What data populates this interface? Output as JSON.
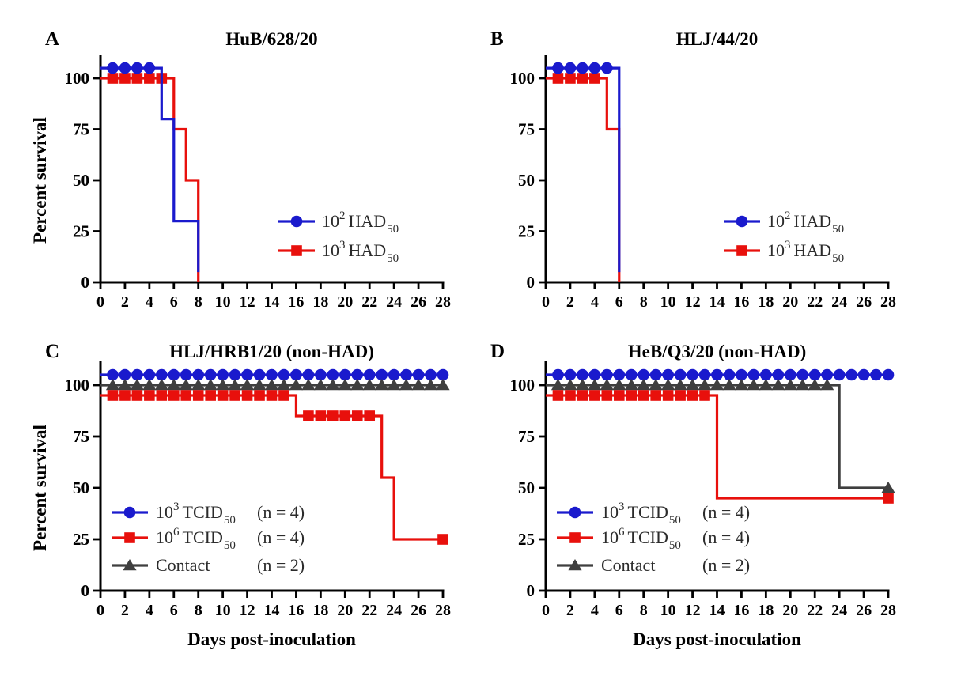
{
  "figure": {
    "ylabel": "Percent survival",
    "xlabel": "Days post-inoculation"
  },
  "colors": {
    "blue": "#1a1acd",
    "red": "#e8100c",
    "gray": "#3f3f3f",
    "axis": "#000000",
    "legend_text": "#2b2b2b"
  },
  "chart_data": [
    {
      "type": "line",
      "panel": "A",
      "title": "HuB/628/20",
      "xlabel": "",
      "ylabel": "Percent survival",
      "xlim": [
        0,
        28
      ],
      "ylim": [
        0,
        110
      ],
      "xticks": [
        0,
        2,
        4,
        6,
        8,
        10,
        12,
        14,
        16,
        18,
        20,
        22,
        24,
        26,
        28
      ],
      "yticks": [
        0,
        25,
        50,
        75,
        100
      ],
      "grid": false,
      "legend_position": "right-center",
      "series": [
        {
          "name": "10^2 HAD50",
          "label": {
            "base": "10",
            "sup": "2",
            "text": "HAD",
            "sub": "50"
          },
          "count": "",
          "color_key": "blue",
          "marker": "circle",
          "z": 2,
          "steps": [
            [
              0,
              105
            ],
            [
              5,
              105
            ],
            [
              5,
              80
            ],
            [
              6,
              80
            ],
            [
              6,
              30
            ],
            [
              8,
              30
            ],
            [
              8,
              5
            ]
          ],
          "marker_runs": [
            {
              "from": 1,
              "to": 4,
              "value": 105
            }
          ]
        },
        {
          "name": "10^3 HAD50",
          "label": {
            "base": "10",
            "sup": "3",
            "text": "HAD",
            "sub": "50"
          },
          "count": "",
          "color_key": "red",
          "marker": "square",
          "z": 1,
          "steps": [
            [
              0,
              100
            ],
            [
              6,
              100
            ],
            [
              6,
              75
            ],
            [
              7,
              75
            ],
            [
              7,
              50
            ],
            [
              8,
              50
            ],
            [
              8,
              0
            ]
          ],
          "marker_runs": [
            {
              "from": 1,
              "to": 5,
              "value": 100
            }
          ]
        }
      ]
    },
    {
      "type": "line",
      "panel": "B",
      "title": "HLJ/44/20",
      "xlabel": "",
      "ylabel": "",
      "xlim": [
        0,
        28
      ],
      "ylim": [
        0,
        110
      ],
      "xticks": [
        0,
        2,
        4,
        6,
        8,
        10,
        12,
        14,
        16,
        18,
        20,
        22,
        24,
        26,
        28
      ],
      "yticks": [
        0,
        25,
        50,
        75,
        100
      ],
      "grid": false,
      "legend_position": "right-center",
      "series": [
        {
          "name": "10^2 HAD50",
          "label": {
            "base": "10",
            "sup": "2",
            "text": "HAD",
            "sub": "50"
          },
          "count": "",
          "color_key": "blue",
          "marker": "circle",
          "z": 2,
          "steps": [
            [
              0,
              105
            ],
            [
              6,
              105
            ],
            [
              6,
              5
            ]
          ],
          "marker_runs": [
            {
              "from": 1,
              "to": 5,
              "value": 105
            }
          ]
        },
        {
          "name": "10^3 HAD50",
          "label": {
            "base": "10",
            "sup": "3",
            "text": "HAD",
            "sub": "50"
          },
          "count": "",
          "color_key": "red",
          "marker": "square",
          "z": 1,
          "steps": [
            [
              0,
              100
            ],
            [
              5,
              100
            ],
            [
              5,
              75
            ],
            [
              6,
              75
            ],
            [
              6,
              0
            ]
          ],
          "marker_runs": [
            {
              "from": 1,
              "to": 4,
              "value": 100
            }
          ]
        }
      ]
    },
    {
      "type": "line",
      "panel": "C",
      "title": "HLJ/HRB1/20 (non-HAD)",
      "xlabel": "Days post-inoculation",
      "ylabel": "Percent survival",
      "xlim": [
        0,
        28
      ],
      "ylim": [
        0,
        110
      ],
      "xticks": [
        0,
        2,
        4,
        6,
        8,
        10,
        12,
        14,
        16,
        18,
        20,
        22,
        24,
        26,
        28
      ],
      "yticks": [
        0,
        25,
        50,
        75,
        100
      ],
      "grid": false,
      "legend_position": "lower-left",
      "series": [
        {
          "name": "10^3 TCID50",
          "label": {
            "base": "10",
            "sup": "3",
            "text": "TCID",
            "sub": "50"
          },
          "count": "(n = 4)",
          "color_key": "blue",
          "marker": "circle",
          "z": 1,
          "steps": [
            [
              0,
              105
            ],
            [
              28,
              105
            ]
          ],
          "marker_runs": [
            {
              "from": 1,
              "to": 28,
              "value": 105
            }
          ]
        },
        {
          "name": "10^6 TCID50",
          "label": {
            "base": "10",
            "sup": "6",
            "text": "TCID",
            "sub": "50"
          },
          "count": "(n = 4)",
          "color_key": "red",
          "marker": "square",
          "z": 3,
          "steps": [
            [
              0,
              95
            ],
            [
              16,
              95
            ],
            [
              16,
              85
            ],
            [
              23,
              85
            ],
            [
              23,
              55
            ],
            [
              24,
              55
            ],
            [
              24,
              25
            ],
            [
              28,
              25
            ]
          ],
          "marker_runs": [
            {
              "from": 1,
              "to": 15,
              "value": 95
            },
            {
              "from": 17,
              "to": 22,
              "value": 85
            },
            {
              "from": 28,
              "to": 28,
              "value": 25
            }
          ]
        },
        {
          "name": "Contact",
          "label": {
            "base": "Contact"
          },
          "count": "(n = 2)",
          "color_key": "gray",
          "marker": "triangle",
          "z": 2,
          "steps": [
            [
              0,
              100
            ],
            [
              28,
              100
            ]
          ],
          "marker_runs": [
            {
              "from": 1,
              "to": 28,
              "value": 100
            }
          ]
        }
      ]
    },
    {
      "type": "line",
      "panel": "D",
      "title": "HeB/Q3/20 (non-HAD)",
      "xlabel": "Days post-inoculation",
      "ylabel": "",
      "xlim": [
        0,
        28
      ],
      "ylim": [
        0,
        110
      ],
      "xticks": [
        0,
        2,
        4,
        6,
        8,
        10,
        12,
        14,
        16,
        18,
        20,
        22,
        24,
        26,
        28
      ],
      "yticks": [
        0,
        25,
        50,
        75,
        100
      ],
      "grid": false,
      "legend_position": "lower-left",
      "series": [
        {
          "name": "10^3 TCID50",
          "label": {
            "base": "10",
            "sup": "3",
            "text": "TCID",
            "sub": "50"
          },
          "count": "(n = 4)",
          "color_key": "blue",
          "marker": "circle",
          "z": 1,
          "steps": [
            [
              0,
              105
            ],
            [
              28,
              105
            ]
          ],
          "marker_runs": [
            {
              "from": 1,
              "to": 28,
              "value": 105
            }
          ]
        },
        {
          "name": "10^6 TCID50",
          "label": {
            "base": "10",
            "sup": "6",
            "text": "TCID",
            "sub": "50"
          },
          "count": "(n = 4)",
          "color_key": "red",
          "marker": "square",
          "z": 3,
          "steps": [
            [
              0,
              95
            ],
            [
              14,
              95
            ],
            [
              14,
              45
            ],
            [
              28,
              45
            ]
          ],
          "marker_runs": [
            {
              "from": 1,
              "to": 13,
              "value": 95
            },
            {
              "from": 28,
              "to": 28,
              "value": 45
            }
          ]
        },
        {
          "name": "Contact",
          "label": {
            "base": "Contact"
          },
          "count": "(n = 2)",
          "color_key": "gray",
          "marker": "triangle",
          "z": 2,
          "steps": [
            [
              0,
              100
            ],
            [
              24,
              100
            ],
            [
              24,
              50
            ],
            [
              28,
              50
            ]
          ],
          "marker_runs": [
            {
              "from": 1,
              "to": 23,
              "value": 100
            },
            {
              "from": 28,
              "to": 28,
              "value": 50
            }
          ]
        }
      ]
    }
  ]
}
